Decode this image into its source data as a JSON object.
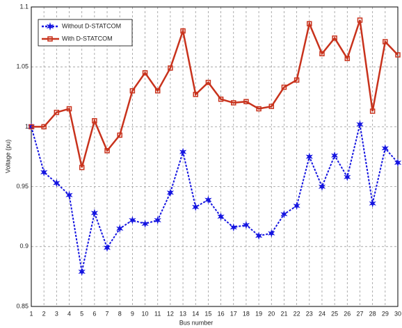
{
  "chart_data": {
    "type": "line",
    "x_label": "Bus number",
    "y_label": "Voltage (pu)",
    "x": [
      1,
      2,
      3,
      4,
      5,
      6,
      7,
      8,
      9,
      10,
      11,
      12,
      13,
      14,
      15,
      16,
      17,
      18,
      19,
      20,
      21,
      22,
      23,
      24,
      25,
      26,
      27,
      28,
      29,
      30
    ],
    "series": [
      {
        "name": "Without D-STATCOM",
        "color": "#1414e0",
        "marker": "star",
        "dash": true,
        "values": [
          1.0,
          0.962,
          0.953,
          0.943,
          0.879,
          0.928,
          0.899,
          0.915,
          0.922,
          0.919,
          0.922,
          0.945,
          0.979,
          0.933,
          0.939,
          0.925,
          0.916,
          0.918,
          0.909,
          0.911,
          0.927,
          0.934,
          0.975,
          0.95,
          0.976,
          0.958,
          1.002,
          0.936,
          0.982,
          0.97
        ]
      },
      {
        "name": "With D-STATCOM",
        "color": "#c8321c",
        "marker": "square",
        "dash": false,
        "values": [
          1.0,
          1.0,
          1.012,
          1.015,
          0.966,
          1.005,
          0.98,
          0.993,
          1.03,
          1.045,
          1.03,
          1.049,
          1.08,
          1.027,
          1.037,
          1.023,
          1.02,
          1.021,
          1.015,
          1.017,
          1.033,
          1.039,
          1.086,
          1.061,
          1.074,
          1.057,
          1.089,
          1.013,
          1.071,
          1.06
        ]
      }
    ],
    "xlim": [
      1,
      30
    ],
    "xticks": [
      1,
      2,
      3,
      4,
      5,
      6,
      7,
      8,
      9,
      10,
      11,
      12,
      13,
      14,
      15,
      16,
      17,
      18,
      19,
      20,
      21,
      22,
      23,
      24,
      25,
      26,
      27,
      28,
      29,
      30
    ],
    "ylim": [
      0.85,
      1.1
    ],
    "yticks": [
      0.85,
      0.9,
      0.95,
      1,
      1.05,
      1.1
    ],
    "grid": true,
    "legend": "upper left"
  }
}
